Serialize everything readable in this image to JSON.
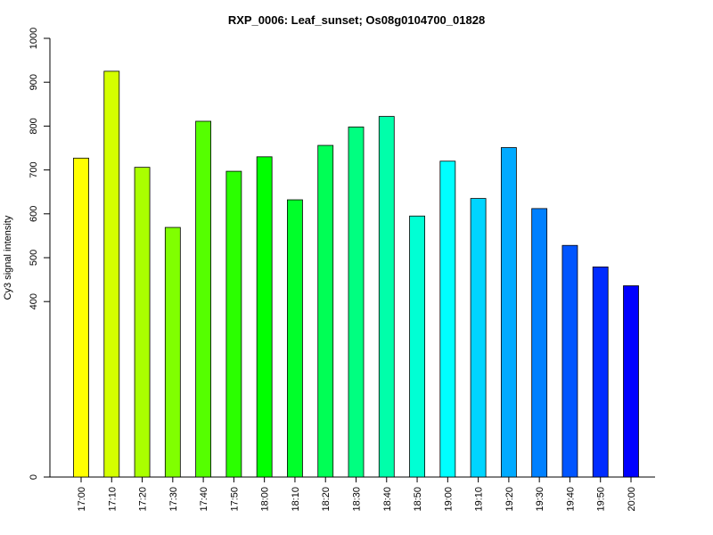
{
  "chart_data": {
    "type": "bar",
    "title": "RXP_0006: Leaf_sunset; Os08g0104700_01828",
    "xlabel": "",
    "ylabel": "Cy3 signal intensity",
    "ylim": [
      0,
      1000
    ],
    "yticks": [
      "0",
      "400",
      "500",
      "600",
      "700",
      "800",
      "900",
      "1000"
    ],
    "categories": [
      "17:00",
      "17:10",
      "17:20",
      "17:30",
      "17:40",
      "17:50",
      "18:00",
      "18:10",
      "18:20",
      "18:30",
      "18:40",
      "18:50",
      "19:00",
      "19:10",
      "19:20",
      "19:30",
      "19:40",
      "19:50",
      "20:00"
    ],
    "values": [
      727,
      925,
      706,
      569,
      811,
      697,
      730,
      632,
      756,
      798,
      822,
      595,
      720,
      635,
      751,
      612,
      528,
      479,
      436
    ],
    "colors": [
      "#FFFF00",
      "#D4FF00",
      "#AAFF00",
      "#80FF00",
      "#55FF00",
      "#2BFF00",
      "#00FF00",
      "#00FF2A",
      "#00FF55",
      "#00FF80",
      "#00FFAA",
      "#00FFD4",
      "#00FFFF",
      "#00D5FF",
      "#00AAFF",
      "#0080FF",
      "#0055FF",
      "#002BFF",
      "#0000FF"
    ],
    "grid": false,
    "legend": "none"
  }
}
